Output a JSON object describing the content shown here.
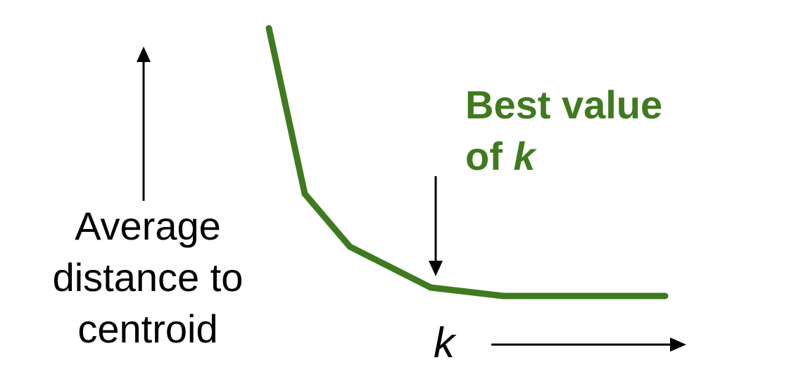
{
  "y_label": {
    "line1": "Average",
    "line2": "distance to",
    "line3": "centroid"
  },
  "x_label": "k",
  "annotation": {
    "line1": "Best value",
    "line2_prefix": "of ",
    "line2_var": "k"
  },
  "colors": {
    "curve": "#3f7a1e",
    "annotation": "#3f7a1e",
    "arrows": "#000000"
  }
}
